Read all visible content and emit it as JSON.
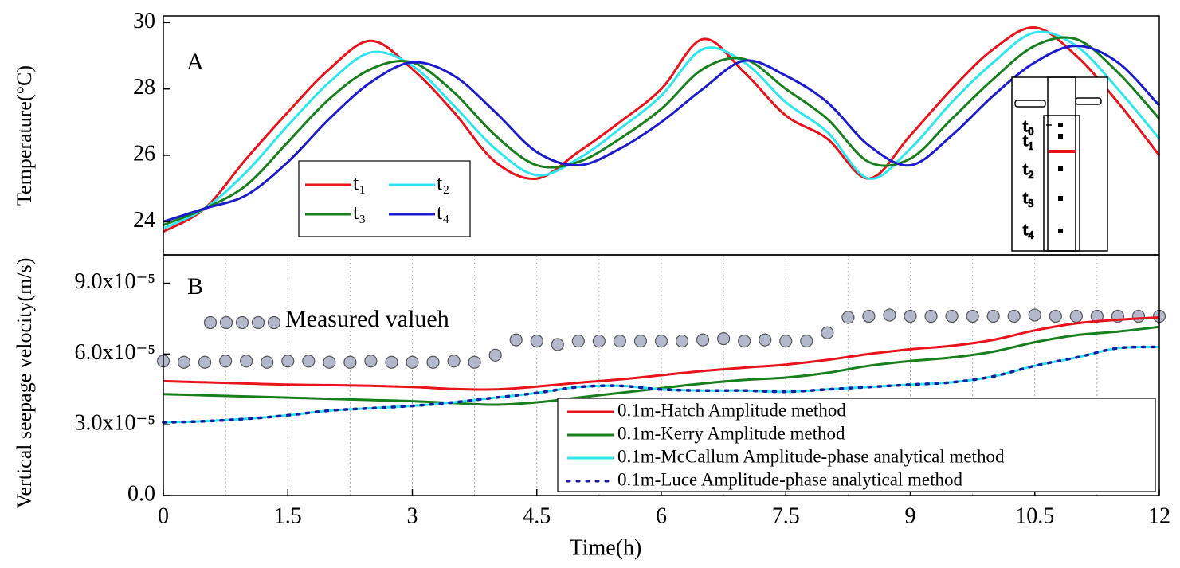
{
  "chart_data": [
    {
      "type": "line",
      "title": "A",
      "ylabel": "Temperature(°C)",
      "xlim": [
        0,
        12
      ],
      "ylim": [
        23,
        30.2
      ],
      "yticks": [
        24,
        26,
        28,
        30
      ],
      "legend": "lower left",
      "legend_columns": 2,
      "x": [
        0,
        0.5,
        1,
        1.5,
        2,
        2.5,
        3,
        3.5,
        4,
        4.5,
        5,
        5.5,
        6,
        6.5,
        7,
        7.5,
        8,
        8.5,
        9,
        9.5,
        10,
        10.5,
        11,
        11.5,
        12
      ],
      "series": [
        {
          "name": "t₁",
          "color": "#e8131b",
          "values": [
            23.7,
            24.4,
            25.9,
            27.3,
            28.6,
            29.45,
            28.6,
            27.3,
            25.8,
            25.3,
            26.1,
            27.0,
            28.0,
            29.5,
            28.5,
            27.2,
            26.5,
            25.3,
            26.6,
            28.0,
            29.2,
            29.85,
            29.0,
            27.6,
            26.0
          ]
        },
        {
          "name": "t₂",
          "color": "#2ee6ee",
          "values": [
            23.8,
            24.4,
            25.5,
            26.9,
            28.2,
            29.1,
            28.7,
            27.5,
            26.2,
            25.4,
            25.9,
            26.8,
            27.8,
            29.2,
            28.8,
            27.6,
            26.7,
            25.3,
            26.2,
            27.6,
            28.8,
            29.7,
            29.3,
            28.0,
            26.5
          ]
        },
        {
          "name": "t₃",
          "color": "#17801c",
          "values": [
            23.9,
            24.4,
            25.1,
            26.4,
            27.7,
            28.6,
            28.8,
            27.9,
            26.6,
            25.7,
            25.8,
            26.5,
            27.4,
            28.6,
            28.9,
            28.0,
            27.1,
            25.8,
            25.9,
            27.1,
            28.3,
            29.3,
            29.5,
            28.5,
            27.1
          ]
        },
        {
          "name": "t₄",
          "color": "#1c1ccc",
          "values": [
            24.0,
            24.4,
            24.8,
            25.8,
            27.1,
            28.2,
            28.8,
            28.4,
            27.3,
            26.1,
            25.7,
            26.2,
            27.0,
            28.0,
            28.85,
            28.4,
            27.6,
            26.3,
            25.7,
            26.6,
            27.8,
            28.8,
            29.3,
            28.8,
            27.5
          ]
        }
      ],
      "inset_labels": [
        "t₀",
        "t₁",
        "t₂",
        "t₃",
        "t₄"
      ]
    },
    {
      "type": "line",
      "title": "B",
      "ylabel": "Vertical seepage velocity(m/s)",
      "xlabel": "Time(h)",
      "xlim": [
        0,
        12
      ],
      "xticks": [
        0,
        1.5,
        3,
        4.5,
        6,
        7.5,
        9,
        10.5,
        12
      ],
      "xgrid": [
        0.75,
        1.5,
        2.25,
        3,
        3.75,
        4.5,
        5.25,
        6,
        6.75,
        7.5,
        8.25,
        9,
        9.75,
        10.5,
        11.25
      ],
      "ylim": [
        0,
        0.000102
      ],
      "yticks": [
        {
          "value": 0,
          "label": "0.0"
        },
        {
          "value": 3e-05,
          "label": "3.0x10⁻⁵"
        },
        {
          "value": 6e-05,
          "label": "6.0x10⁻⁵"
        },
        {
          "value": 9e-05,
          "label": "9.0x10⁻⁵"
        }
      ],
      "legend": "lower right",
      "x": [
        0,
        0.5,
        1,
        1.5,
        2,
        2.5,
        3,
        3.5,
        4,
        4.5,
        5,
        5.5,
        6,
        6.5,
        7,
        7.5,
        8,
        8.5,
        9,
        9.5,
        10,
        10.5,
        11,
        11.5,
        12
      ],
      "series": [
        {
          "name": "Measured valueh",
          "color": "#b4b8cc",
          "marker": "circle",
          "x": [
            0,
            0.25,
            0.5,
            0.75,
            1,
            1.25,
            1.5,
            1.75,
            2,
            2.25,
            2.5,
            2.75,
            3,
            3.25,
            3.5,
            3.75,
            4,
            4.25,
            4.5,
            4.75,
            5,
            5.25,
            5.5,
            5.75,
            6,
            6.25,
            6.5,
            6.75,
            7,
            7.25,
            7.5,
            7.75,
            8,
            8.25,
            8.5,
            8.75,
            9,
            9.25,
            9.5,
            9.75,
            10,
            10.25,
            10.5,
            10.75,
            11,
            11.25,
            11.5,
            11.75,
            12
          ],
          "values": [
            5.7e-05,
            5.65e-05,
            5.65e-05,
            5.7e-05,
            5.7e-05,
            5.65e-05,
            5.7e-05,
            5.7e-05,
            5.65e-05,
            5.65e-05,
            5.7e-05,
            5.65e-05,
            5.65e-05,
            5.65e-05,
            5.7e-05,
            5.65e-05,
            5.95e-05,
            6.6e-05,
            6.55e-05,
            6.4e-05,
            6.55e-05,
            6.55e-05,
            6.55e-05,
            6.55e-05,
            6.55e-05,
            6.55e-05,
            6.6e-05,
            6.65e-05,
            6.55e-05,
            6.6e-05,
            6.55e-05,
            6.55e-05,
            6.9e-05,
            7.55e-05,
            7.6e-05,
            7.65e-05,
            7.6e-05,
            7.6e-05,
            7.6e-05,
            7.6e-05,
            7.6e-05,
            7.6e-05,
            7.65e-05,
            7.6e-05,
            7.6e-05,
            7.6e-05,
            7.6e-05,
            7.6e-05,
            7.6e-05
          ]
        },
        {
          "name": "0.1m-Hatch Amplitude method",
          "color": "#e8131b",
          "values": [
            4.85e-05,
            4.8e-05,
            4.75e-05,
            4.7e-05,
            4.68e-05,
            4.65e-05,
            4.6e-05,
            4.52e-05,
            4.5e-05,
            4.62e-05,
            4.78e-05,
            4.92e-05,
            5.1e-05,
            5.28e-05,
            5.42e-05,
            5.55e-05,
            5.75e-05,
            6e-05,
            6.2e-05,
            6.35e-05,
            6.6e-05,
            7e-05,
            7.3e-05,
            7.45e-05,
            7.55e-05
          ]
        },
        {
          "name": "0.1m-Kerry Amplitude method",
          "color": "#17801c",
          "values": [
            4.3e-05,
            4.25e-05,
            4.2e-05,
            4.15e-05,
            4.1e-05,
            4.05e-05,
            4e-05,
            3.92e-05,
            3.85e-05,
            3.95e-05,
            4.15e-05,
            4.35e-05,
            4.55e-05,
            4.75e-05,
            4.9e-05,
            5e-05,
            5.2e-05,
            5.5e-05,
            5.7e-05,
            5.85e-05,
            6.1e-05,
            6.5e-05,
            6.8e-05,
            6.95e-05,
            7.15e-05
          ]
        },
        {
          "name": "0.1m-McCallum Amplitude-phase analytical method",
          "color": "#2ee6ee",
          "values": [
            3.1e-05,
            3.15e-05,
            3.25e-05,
            3.4e-05,
            3.6e-05,
            3.7e-05,
            3.8e-05,
            3.95e-05,
            4.15e-05,
            4.35e-05,
            4.6e-05,
            4.65e-05,
            4.5e-05,
            4.45e-05,
            4.45e-05,
            4.4e-05,
            4.5e-05,
            4.6e-05,
            4.7e-05,
            4.8e-05,
            5.05e-05,
            5.5e-05,
            5.85e-05,
            6.25e-05,
            6.3e-05
          ]
        },
        {
          "name": "0.1m-Luce Amplitude-phase analytical method",
          "color": "#1a1aa0",
          "dash": "dotted",
          "values": [
            3.1e-05,
            3.15e-05,
            3.25e-05,
            3.4e-05,
            3.6e-05,
            3.7e-05,
            3.8e-05,
            3.95e-05,
            4.15e-05,
            4.35e-05,
            4.6e-05,
            4.65e-05,
            4.5e-05,
            4.45e-05,
            4.45e-05,
            4.4e-05,
            4.5e-05,
            4.6e-05,
            4.7e-05,
            4.8e-05,
            5.05e-05,
            5.5e-05,
            5.85e-05,
            6.25e-05,
            6.3e-05
          ]
        }
      ]
    }
  ]
}
